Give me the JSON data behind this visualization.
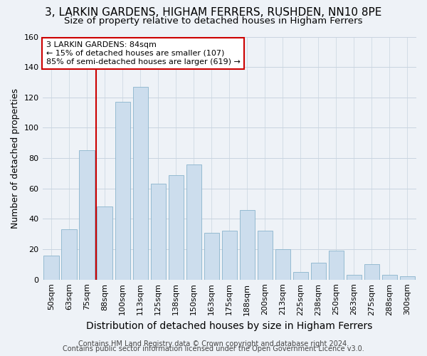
{
  "title": "3, LARKIN GARDENS, HIGHAM FERRERS, RUSHDEN, NN10 8PE",
  "subtitle": "Size of property relative to detached houses in Higham Ferrers",
  "xlabel": "Distribution of detached houses by size in Higham Ferrers",
  "ylabel": "Number of detached properties",
  "footer1": "Contains HM Land Registry data © Crown copyright and database right 2024.",
  "footer2": "Contains public sector information licensed under the Open Government Licence v3.0.",
  "bar_labels": [
    "50sqm",
    "63sqm",
    "75sqm",
    "88sqm",
    "100sqm",
    "113sqm",
    "125sqm",
    "138sqm",
    "150sqm",
    "163sqm",
    "175sqm",
    "188sqm",
    "200sqm",
    "213sqm",
    "225sqm",
    "238sqm",
    "250sqm",
    "263sqm",
    "275sqm",
    "288sqm",
    "300sqm"
  ],
  "bar_values": [
    16,
    33,
    85,
    48,
    117,
    127,
    63,
    69,
    76,
    31,
    32,
    46,
    32,
    20,
    5,
    11,
    19,
    3,
    10,
    3,
    2
  ],
  "bar_color": "#ccdded",
  "bar_edge_color": "#8ab4cc",
  "vline_color": "#cc0000",
  "vline_x": 2.5,
  "annotation_text": "3 LARKIN GARDENS: 84sqm\n← 15% of detached houses are smaller (107)\n85% of semi-detached houses are larger (619) →",
  "annotation_box_edgecolor": "#cc0000",
  "annotation_bg": "#ffffff",
  "ylim": [
    0,
    160
  ],
  "yticks": [
    0,
    20,
    40,
    60,
    80,
    100,
    120,
    140,
    160
  ],
  "grid_color": "#c8d4e0",
  "bg_color": "#eef2f7",
  "title_fontsize": 11,
  "subtitle_fontsize": 9.5,
  "xlabel_fontsize": 10,
  "ylabel_fontsize": 9,
  "tick_fontsize": 8,
  "annot_fontsize": 8,
  "footer_fontsize": 7
}
